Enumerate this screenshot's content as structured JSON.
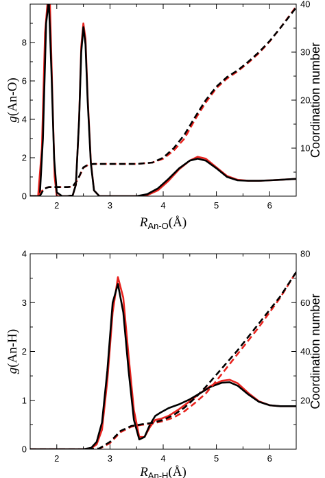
{
  "chart_data": [
    {
      "type": "line",
      "ylabel": {
        "main": "g",
        "paren": "(An-O)"
      },
      "xlabel": {
        "main": "R",
        "sub": "An-O",
        "unit": "(Å)"
      },
      "y2label": "Coordination number",
      "xlim": [
        1.5,
        6.5
      ],
      "ylim": [
        0,
        10
      ],
      "y2lim": [
        0,
        40
      ],
      "xticks": [
        2,
        3,
        4,
        5,
        6
      ],
      "yticks": [
        0,
        2,
        4,
        6,
        8
      ],
      "y2ticks": [
        10,
        20,
        30,
        40
      ],
      "series": [
        {
          "color": "#e8231e",
          "axis": "left",
          "dash": false,
          "x": [
            1.5,
            1.65,
            1.72,
            1.78,
            1.83,
            1.87,
            1.92,
            1.96,
            2.0,
            2.1,
            2.2,
            2.3,
            2.36,
            2.42,
            2.46,
            2.5,
            2.54,
            2.58,
            2.64,
            2.7,
            2.8,
            3.0,
            3.2,
            3.5,
            3.7,
            3.9,
            4.1,
            4.3,
            4.5,
            4.65,
            4.8,
            5.0,
            5.2,
            5.4,
            5.6,
            5.8,
            6.0,
            6.2,
            6.5
          ],
          "y": [
            0,
            0,
            2.5,
            8.5,
            10.2,
            10.2,
            5.0,
            1.0,
            0,
            0,
            0,
            0.05,
            0.6,
            4.0,
            7.8,
            9.0,
            8.2,
            5.2,
            1.8,
            0.3,
            0,
            0,
            0,
            0,
            0.05,
            0.3,
            0.8,
            1.4,
            1.85,
            2.05,
            1.95,
            1.5,
            1.05,
            0.85,
            0.8,
            0.8,
            0.82,
            0.85,
            0.9
          ]
        },
        {
          "color": "#000000",
          "axis": "left",
          "dash": false,
          "x": [
            1.5,
            1.68,
            1.74,
            1.8,
            1.85,
            1.9,
            1.95,
            2.0,
            2.1,
            2.2,
            2.3,
            2.36,
            2.42,
            2.46,
            2.5,
            2.54,
            2.58,
            2.64,
            2.7,
            2.8,
            3.0,
            3.2,
            3.5,
            3.7,
            3.9,
            4.1,
            4.3,
            4.5,
            4.65,
            4.8,
            5.0,
            5.2,
            5.4,
            5.6,
            5.8,
            6.0,
            6.2,
            6.5
          ],
          "y": [
            0,
            0,
            3.0,
            9.0,
            10.2,
            6.5,
            2.0,
            0.2,
            0,
            0,
            0.05,
            0.6,
            4.0,
            7.5,
            8.8,
            7.9,
            5.0,
            1.7,
            0.3,
            0,
            0,
            0,
            0,
            0.1,
            0.4,
            0.9,
            1.45,
            1.85,
            1.95,
            1.85,
            1.45,
            1.0,
            0.82,
            0.8,
            0.8,
            0.82,
            0.85,
            0.9
          ]
        },
        {
          "color": "#e8231e",
          "axis": "right",
          "dash": true,
          "x": [
            1.5,
            1.65,
            1.75,
            1.85,
            2.0,
            2.2,
            2.3,
            2.4,
            2.5,
            2.6,
            2.7,
            3.0,
            3.5,
            3.8,
            4.0,
            4.2,
            4.4,
            4.6,
            4.8,
            5.0,
            5.2,
            5.4,
            5.6,
            5.8,
            6.0,
            6.2,
            6.5
          ],
          "y": [
            0,
            0,
            1.5,
            1.9,
            1.9,
            1.9,
            2.0,
            3.5,
            5.9,
            6.6,
            6.7,
            6.7,
            6.7,
            7.0,
            7.8,
            9.5,
            12.0,
            16.0,
            19.5,
            22.5,
            24.5,
            26.0,
            27.8,
            29.8,
            32.2,
            35.0,
            39.5
          ]
        },
        {
          "color": "#000000",
          "axis": "right",
          "dash": true,
          "x": [
            1.5,
            1.68,
            1.76,
            1.85,
            2.0,
            2.2,
            2.3,
            2.4,
            2.5,
            2.6,
            2.7,
            3.0,
            3.5,
            3.8,
            4.0,
            4.2,
            4.4,
            4.6,
            4.8,
            5.0,
            5.2,
            5.4,
            5.6,
            5.8,
            6.0,
            6.2,
            6.5
          ],
          "y": [
            0,
            0,
            1.5,
            1.9,
            1.9,
            1.9,
            2.0,
            3.6,
            6.0,
            6.6,
            6.7,
            6.7,
            6.7,
            7.0,
            8.0,
            10.0,
            12.8,
            16.5,
            20.0,
            22.8,
            24.8,
            26.2,
            28.0,
            30.0,
            32.3,
            35.0,
            39.3
          ]
        }
      ]
    },
    {
      "type": "line",
      "ylabel": {
        "main": "g",
        "paren": "(An-H)"
      },
      "xlabel": {
        "main": "R",
        "sub": "An-H",
        "unit": "(Å)"
      },
      "y2label": "Coordination number",
      "xlim": [
        1.5,
        6.5
      ],
      "ylim": [
        0,
        4
      ],
      "y2lim": [
        0,
        80
      ],
      "xticks": [
        2,
        3,
        4,
        5,
        6
      ],
      "yticks": [
        0,
        1,
        2,
        3,
        4
      ],
      "y2ticks": [
        20,
        40,
        60,
        80
      ],
      "series": [
        {
          "color": "#e8231e",
          "axis": "left",
          "dash": false,
          "x": [
            1.5,
            2.5,
            2.65,
            2.75,
            2.85,
            2.95,
            3.05,
            3.15,
            3.25,
            3.35,
            3.45,
            3.55,
            3.65,
            3.75,
            3.85,
            3.95,
            4.1,
            4.3,
            4.5,
            4.7,
            4.9,
            5.1,
            5.25,
            5.4,
            5.6,
            5.8,
            6.0,
            6.2,
            6.5
          ],
          "y": [
            0,
            0,
            0.02,
            0.1,
            0.4,
            1.4,
            2.8,
            3.52,
            3.1,
            1.9,
            0.8,
            0.25,
            0.25,
            0.45,
            0.6,
            0.62,
            0.68,
            0.82,
            0.98,
            1.15,
            1.3,
            1.4,
            1.42,
            1.35,
            1.15,
            0.98,
            0.9,
            0.88,
            0.88
          ]
        },
        {
          "color": "#000000",
          "axis": "left",
          "dash": false,
          "x": [
            1.5,
            2.5,
            2.65,
            2.75,
            2.85,
            2.95,
            3.05,
            3.15,
            3.25,
            3.35,
            3.45,
            3.55,
            3.65,
            3.75,
            3.85,
            3.95,
            4.1,
            4.3,
            4.5,
            4.7,
            4.9,
            5.1,
            5.25,
            5.4,
            5.6,
            5.8,
            6.0,
            6.2,
            6.5
          ],
          "y": [
            0,
            0,
            0.03,
            0.15,
            0.55,
            1.6,
            3.0,
            3.38,
            2.8,
            1.6,
            0.6,
            0.2,
            0.25,
            0.5,
            0.68,
            0.75,
            0.84,
            0.92,
            1.02,
            1.15,
            1.28,
            1.36,
            1.37,
            1.3,
            1.12,
            0.97,
            0.9,
            0.88,
            0.88
          ]
        },
        {
          "color": "#e8231e",
          "axis": "right",
          "dash": true,
          "x": [
            1.5,
            2.6,
            2.8,
            3.0,
            3.2,
            3.4,
            3.6,
            3.8,
            4.0,
            4.2,
            4.4,
            4.6,
            4.8,
            5.0,
            5.2,
            5.4,
            5.6,
            5.8,
            6.0,
            6.2,
            6.5
          ],
          "y": [
            0,
            0,
            0.2,
            2.5,
            7.0,
            9.2,
            10.0,
            10.5,
            11.5,
            13.0,
            15.5,
            19.0,
            22.8,
            28.0,
            33.5,
            39.0,
            44.5,
            50.0,
            56.0,
            62.0,
            72.5
          ]
        },
        {
          "color": "#000000",
          "axis": "right",
          "dash": true,
          "x": [
            1.5,
            2.6,
            2.8,
            3.0,
            3.2,
            3.4,
            3.6,
            3.8,
            4.0,
            4.2,
            4.4,
            4.6,
            4.8,
            5.0,
            5.2,
            5.4,
            5.6,
            5.8,
            6.0,
            6.2,
            6.5
          ],
          "y": [
            0,
            0,
            0.3,
            3.0,
            7.5,
            9.5,
            10.2,
            10.8,
            12.0,
            14.0,
            17.0,
            21.0,
            25.5,
            30.5,
            35.5,
            40.5,
            46.0,
            51.5,
            57.0,
            62.5,
            72.5
          ]
        }
      ]
    }
  ]
}
